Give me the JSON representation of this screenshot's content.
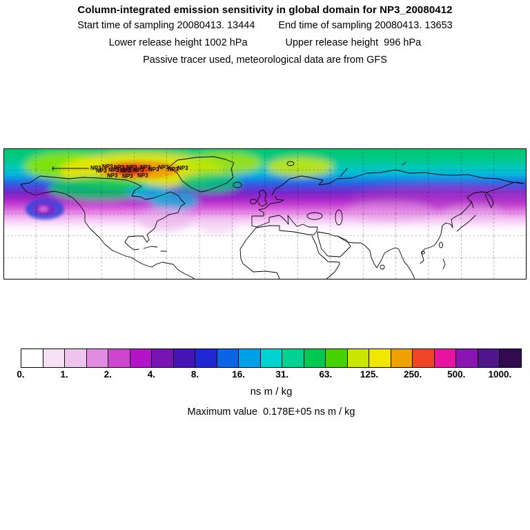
{
  "header": {
    "title": "Column-integrated emission sensitivity in global domain for NP3_20080412",
    "line2_left": "Start time of sampling 20080413. 13444",
    "line2_right": "End time of sampling 20080413. 13653",
    "line3_left": "Lower release height 1002 hPa",
    "line3_right": "Upper release height  996 hPa",
    "line4": "Passive tracer used, meteorological data are from GFS"
  },
  "map": {
    "station_label": "NP3"
  },
  "chart_data": {
    "type": "heatmap",
    "title": "Column-integrated emission sensitivity in global domain for NP3_20080412",
    "receptor": "NP3_20080412",
    "sampling_start": "20080413. 13444",
    "sampling_end": "20080413. 13653",
    "lower_release_height": "1002 hPa",
    "upper_release_height": "996 hPa",
    "tracer_note": "Passive tracer used, meteorological data are from GFS",
    "units": "ns m / kg",
    "max_value": "0.178E+05",
    "max_value_text": "Maximum value  0.178E+05 ns m / kg",
    "projection_extent": {
      "lon_min": -180,
      "lon_max": 180,
      "lat_min": 0,
      "lat_max": 90
    },
    "grid": {
      "dashed": true,
      "lon_step_deg": 22.5,
      "lat_step_deg": 15
    },
    "colorbar": {
      "units": "ns m / kg",
      "scale": "log, factor-2 levels",
      "tick_labels": [
        "0.",
        "1.",
        "2.",
        "4.",
        "8.",
        "16.",
        "31.",
        "63.",
        "125.",
        "250.",
        "500.",
        "1000."
      ],
      "cell_colors": [
        "#ffffff",
        "#f6e0f6",
        "#eec3ee",
        "#e08ce0",
        "#cd46cd",
        "#b414c8",
        "#7814b4",
        "#4614b4",
        "#1e28d2",
        "#0a64e6",
        "#00a0e6",
        "#00d2d2",
        "#00d296",
        "#00c850",
        "#46d200",
        "#c8e600",
        "#f0e600",
        "#f0a000",
        "#f04628",
        "#e614a0",
        "#8c14b4",
        "#50148c",
        "#320a50"
      ]
    },
    "field_summary": {
      "description": "High emission-sensitivity plume spans the whole Arctic band (roughly 45N-90N, all longitudes). Maximum (red/orange core, >250 ns m/kg) lies over the Canadian Arctic Archipelago near the NP3 receptor cluster; yellow patches over Alaska, Greenland and Scandinavia; values decay southward through green, cyan, blue, purple, magenta and pale-pink bands, reaching ~35N over North America and ~50N over Eurasia; a cyclonic spiral feature sits over the North Pacific; southern half of the domain is near zero (white)."
    }
  }
}
